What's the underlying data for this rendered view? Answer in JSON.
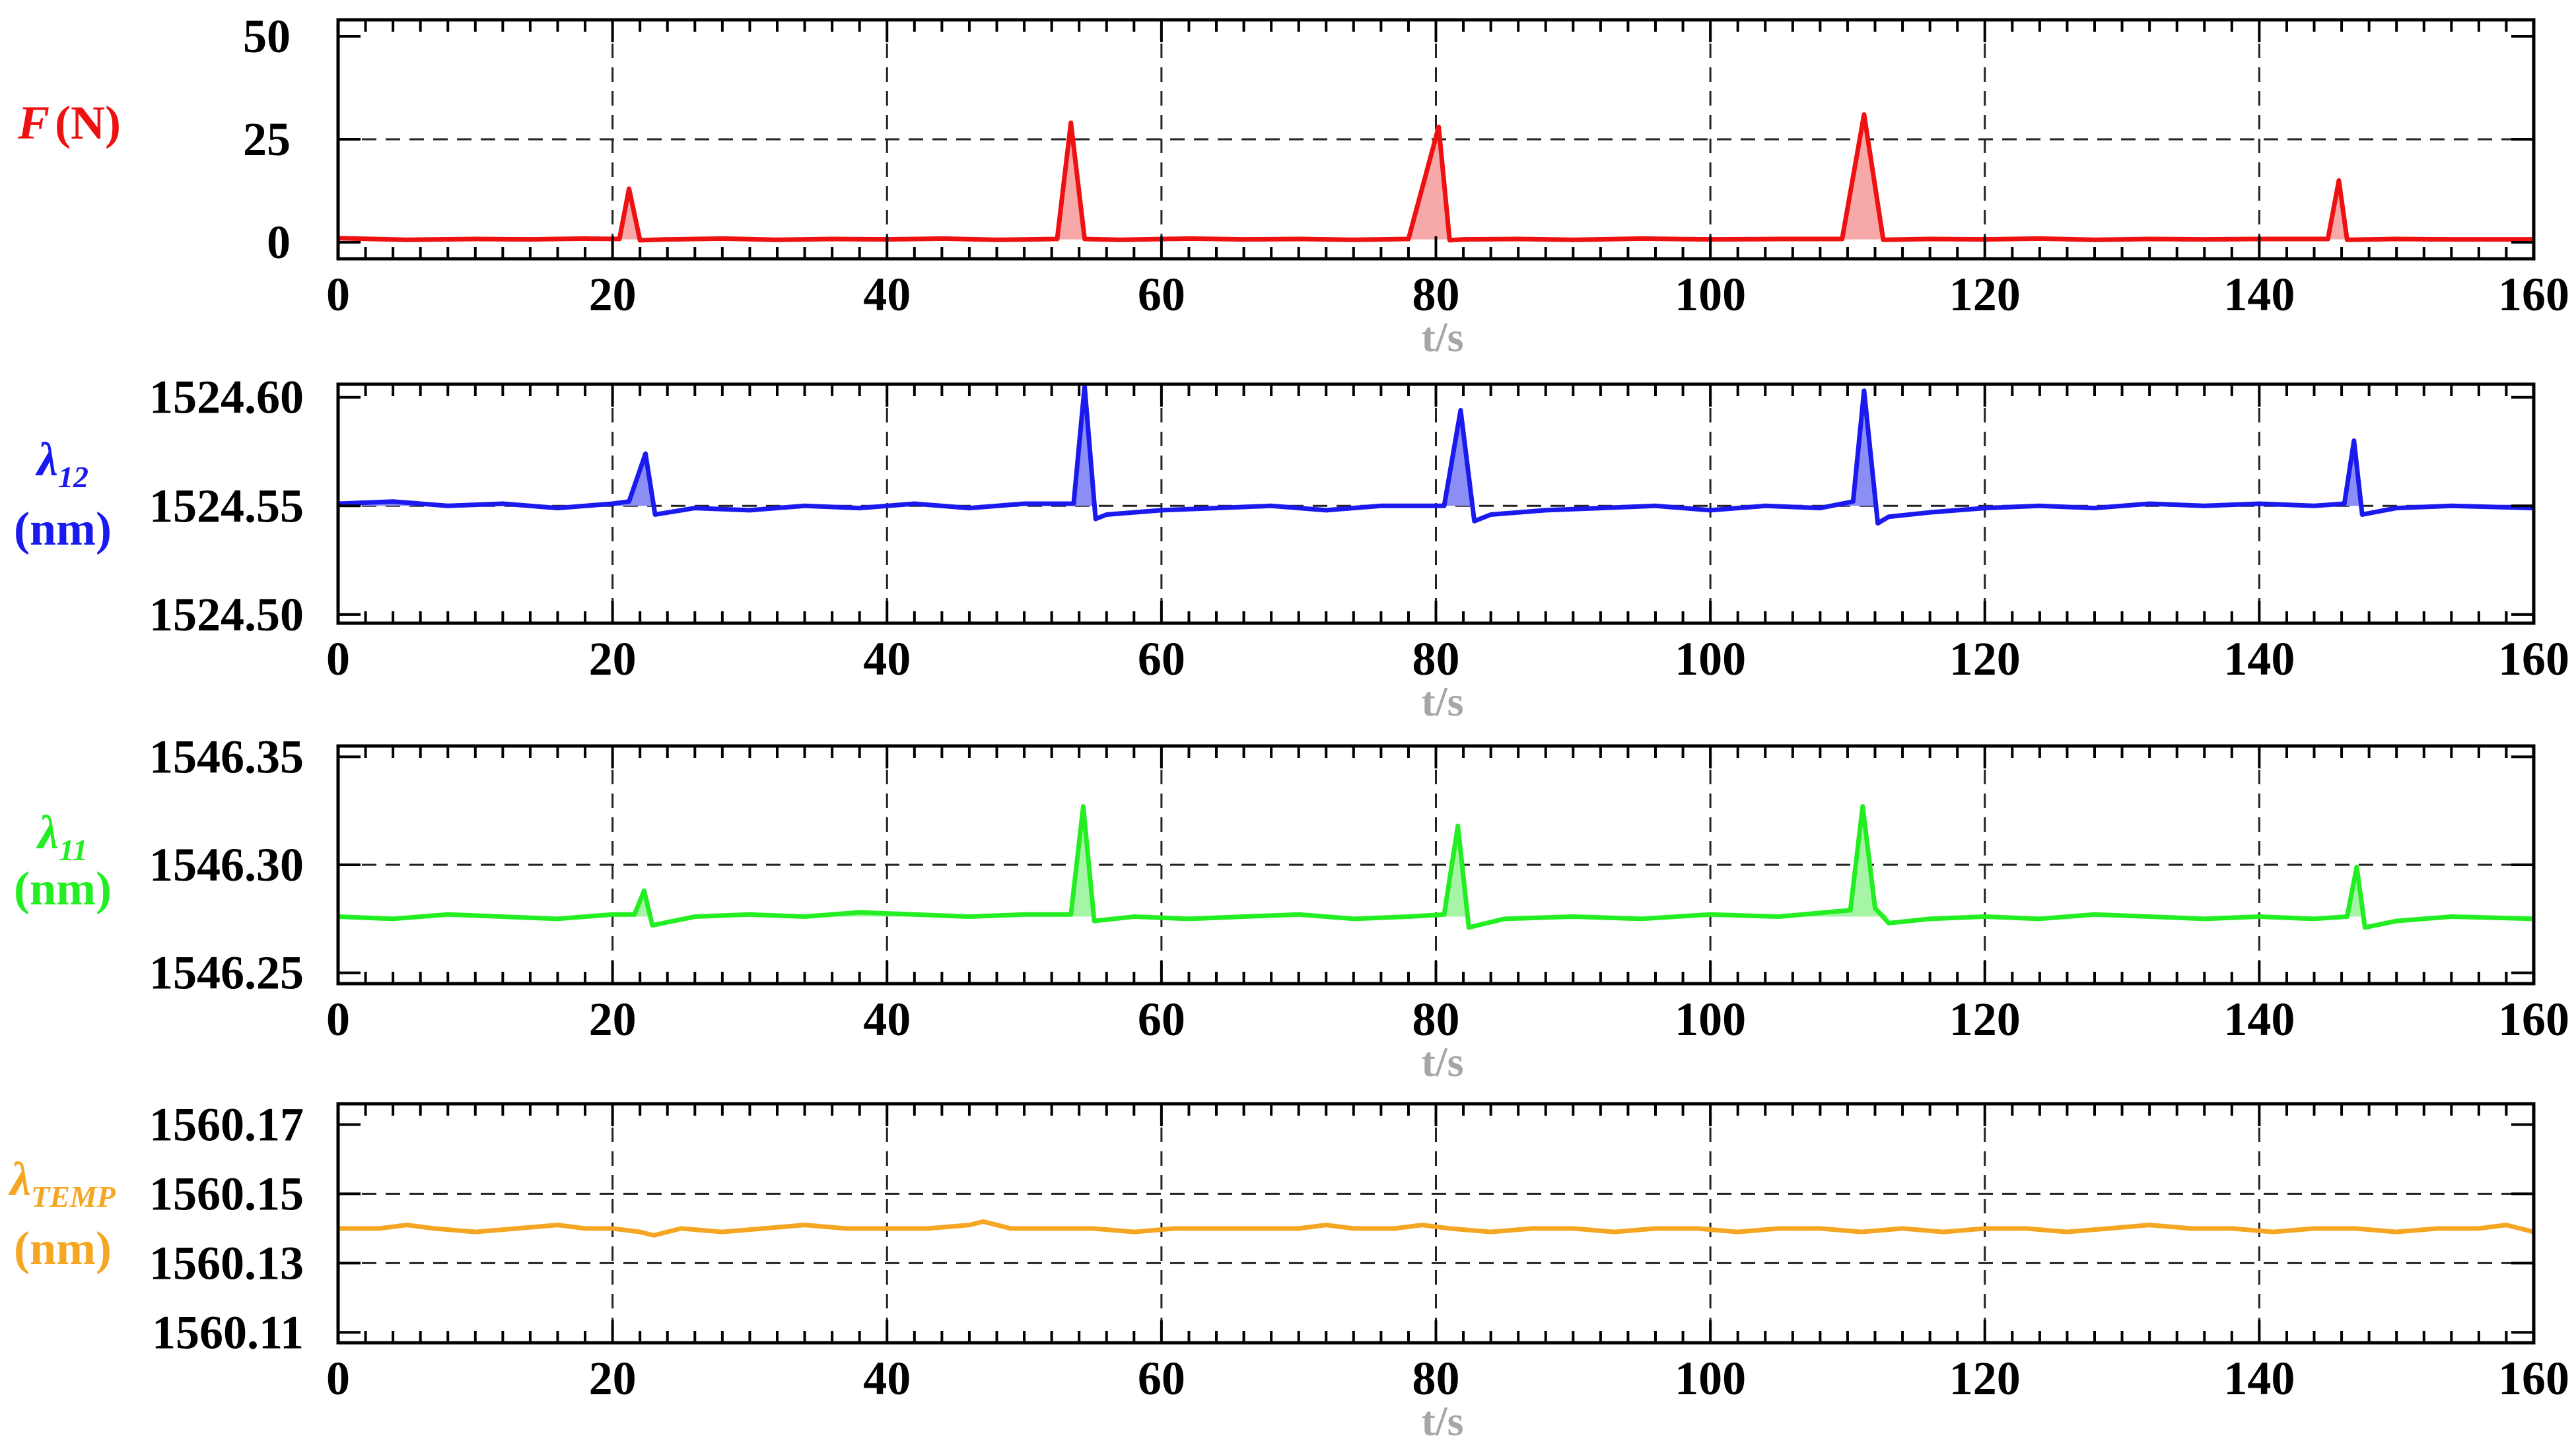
{
  "chart_data": [
    {
      "type": "area",
      "ylabel_symbol": "F",
      "ylabel_subscript": "",
      "ylabel_unit": "(N)",
      "xlabel": "t/s",
      "color": "#ee1111",
      "fill": "#f7a8a8",
      "xlim": [
        0,
        160
      ],
      "ylim": [
        -4,
        54
      ],
      "xticks": [
        "0",
        "20",
        "40",
        "60",
        "80",
        "100",
        "120",
        "140",
        "160"
      ],
      "yticks": [
        {
          "value": 0,
          "label": "0"
        },
        {
          "value": 25,
          "label": "25"
        },
        {
          "value": 50,
          "label": "50"
        }
      ],
      "hgrid": [
        25
      ],
      "series": [
        {
          "baseline": 0.7,
          "x": [
            0,
            5,
            10,
            14,
            18,
            20.5,
            21.2,
            22,
            24,
            28,
            32,
            36,
            40,
            44,
            48,
            52.4,
            53.4,
            54.4,
            57,
            62,
            66,
            70,
            74,
            78,
            80.2,
            81,
            82,
            86,
            90,
            95,
            100,
            105,
            109.6,
            111.2,
            112.6,
            116,
            120,
            124,
            128,
            132,
            136,
            140,
            145,
            145.8,
            146.4,
            150,
            154,
            160
          ],
          "y": [
            1,
            0.6,
            0.8,
            0.7,
            0.9,
            0.8,
            13,
            0.5,
            0.7,
            0.9,
            0.6,
            0.8,
            0.7,
            0.9,
            0.6,
            0.8,
            29,
            0.8,
            0.6,
            0.9,
            0.7,
            0.8,
            0.6,
            0.8,
            28,
            0.5,
            0.7,
            0.8,
            0.6,
            0.9,
            0.7,
            0.8,
            0.8,
            31,
            0.6,
            0.8,
            0.7,
            0.9,
            0.6,
            0.8,
            0.7,
            0.8,
            0.8,
            15,
            0.6,
            0.8,
            0.7,
            0.7
          ]
        }
      ]
    },
    {
      "type": "area",
      "ylabel_symbol": "λ",
      "ylabel_subscript": "12",
      "ylabel_unit": "(nm)",
      "xlabel": "t/s",
      "color": "#1a1aee",
      "fill": "#8a8ef5",
      "xlim": [
        0,
        160
      ],
      "ylim": [
        1524.496,
        1524.606
      ],
      "xticks": [
        "0",
        "20",
        "40",
        "60",
        "80",
        "100",
        "120",
        "140",
        "160"
      ],
      "yticks": [
        {
          "value": 1524.5,
          "label": "1524.50"
        },
        {
          "value": 1524.55,
          "label": "1524.55"
        },
        {
          "value": 1524.6,
          "label": "1524.60"
        }
      ],
      "hgrid": [
        1524.55
      ],
      "series": [
        {
          "baseline": 1524.55,
          "x": [
            0,
            4,
            8,
            12,
            16,
            20,
            21.2,
            22.4,
            23.1,
            26,
            30,
            34,
            38,
            42,
            46,
            50,
            53.6,
            54.4,
            55.2,
            56,
            60,
            64,
            68,
            72,
            76,
            80.6,
            81.8,
            82.8,
            84,
            88,
            92,
            96,
            100,
            104,
            108,
            110.4,
            111.2,
            112.2,
            113,
            116,
            120,
            124,
            128,
            132,
            136,
            140,
            144,
            146.2,
            146.9,
            147.5,
            150,
            154,
            160
          ],
          "y": [
            1524.551,
            1524.552,
            1524.55,
            1524.551,
            1524.549,
            1524.551,
            1524.552,
            1524.574,
            1524.546,
            1524.549,
            1524.548,
            1524.55,
            1524.549,
            1524.551,
            1524.549,
            1524.551,
            1524.551,
            1524.605,
            1524.544,
            1524.546,
            1524.548,
            1524.549,
            1524.55,
            1524.548,
            1524.55,
            1524.55,
            1524.594,
            1524.543,
            1524.546,
            1524.548,
            1524.549,
            1524.55,
            1524.548,
            1524.55,
            1524.549,
            1524.552,
            1524.603,
            1524.542,
            1524.545,
            1524.547,
            1524.549,
            1524.55,
            1524.549,
            1524.551,
            1524.55,
            1524.551,
            1524.55,
            1524.551,
            1524.58,
            1524.546,
            1524.549,
            1524.55,
            1524.549
          ]
        }
      ]
    },
    {
      "type": "area",
      "ylabel_symbol": "λ",
      "ylabel_subscript": "11",
      "ylabel_unit": "(nm)",
      "xlabel": "t/s",
      "color": "#22ee22",
      "fill": "#a6f5a6",
      "xlim": [
        0,
        160
      ],
      "ylim": [
        1546.245,
        1546.355
      ],
      "xticks": [
        "0",
        "20",
        "40",
        "60",
        "80",
        "100",
        "120",
        "140",
        "160"
      ],
      "yticks": [
        {
          "value": 1546.25,
          "label": "1546.25"
        },
        {
          "value": 1546.3,
          "label": "1546.30"
        },
        {
          "value": 1546.35,
          "label": "1546.35"
        }
      ],
      "hgrid": [
        1546.3
      ],
      "series": [
        {
          "baseline": 1546.276,
          "x": [
            0,
            4,
            8,
            12,
            16,
            20,
            21.6,
            22.3,
            22.9,
            26,
            30,
            34,
            38,
            42,
            46,
            50,
            53.4,
            54.3,
            55.1,
            58,
            62,
            66,
            70,
            74,
            78,
            80.6,
            81.6,
            82.4,
            85,
            90,
            95,
            100,
            105,
            110.2,
            111.1,
            112,
            113,
            116,
            120,
            124,
            128,
            132,
            136,
            140,
            144,
            146.4,
            147.1,
            147.7,
            150,
            154,
            160
          ],
          "y": [
            1546.276,
            1546.275,
            1546.277,
            1546.276,
            1546.275,
            1546.277,
            1546.277,
            1546.288,
            1546.272,
            1546.276,
            1546.277,
            1546.276,
            1546.278,
            1546.277,
            1546.276,
            1546.277,
            1546.277,
            1546.327,
            1546.274,
            1546.276,
            1546.275,
            1546.276,
            1546.277,
            1546.275,
            1546.276,
            1546.277,
            1546.318,
            1546.271,
            1546.275,
            1546.276,
            1546.275,
            1546.277,
            1546.276,
            1546.279,
            1546.327,
            1546.28,
            1546.273,
            1546.275,
            1546.276,
            1546.275,
            1546.277,
            1546.276,
            1546.275,
            1546.276,
            1546.275,
            1546.276,
            1546.299,
            1546.271,
            1546.274,
            1546.276,
            1546.275
          ]
        }
      ]
    },
    {
      "type": "line",
      "ylabel_symbol": "λ",
      "ylabel_subscript": "TEMP",
      "ylabel_unit": "(nm)",
      "xlabel": "t/s",
      "color": "#f5a623",
      "fill": "",
      "xlim": [
        0,
        160
      ],
      "ylim": [
        1560.107,
        1560.176
      ],
      "xticks": [
        "0",
        "20",
        "40",
        "60",
        "80",
        "100",
        "120",
        "140",
        "160"
      ],
      "yticks": [
        {
          "value": 1560.11,
          "label": "1560.11"
        },
        {
          "value": 1560.13,
          "label": "1560.13"
        },
        {
          "value": 1560.15,
          "label": "1560.15"
        },
        {
          "value": 1560.17,
          "label": "1560.17"
        }
      ],
      "hgrid": [
        1560.13,
        1560.15
      ],
      "series": [
        {
          "baseline": 1560.14,
          "x": [
            0,
            3,
            5,
            7,
            10,
            13,
            16,
            18,
            20,
            22,
            23,
            25,
            28,
            31,
            34,
            37,
            40,
            43,
            46,
            47,
            49,
            52,
            55,
            58,
            61,
            64,
            67,
            70,
            72,
            74,
            77,
            79,
            81,
            84,
            87,
            90,
            93,
            96,
            99,
            102,
            105,
            108,
            111,
            114,
            117,
            120,
            123,
            126,
            129,
            132,
            135,
            138,
            141,
            144,
            147,
            150,
            153,
            156,
            158,
            160
          ],
          "y": [
            1560.14,
            1560.14,
            1560.141,
            1560.14,
            1560.139,
            1560.14,
            1560.141,
            1560.14,
            1560.14,
            1560.139,
            1560.138,
            1560.14,
            1560.139,
            1560.14,
            1560.141,
            1560.14,
            1560.14,
            1560.14,
            1560.141,
            1560.142,
            1560.14,
            1560.14,
            1560.14,
            1560.139,
            1560.14,
            1560.14,
            1560.14,
            1560.14,
            1560.141,
            1560.14,
            1560.14,
            1560.141,
            1560.14,
            1560.139,
            1560.14,
            1560.14,
            1560.139,
            1560.14,
            1560.14,
            1560.139,
            1560.14,
            1560.14,
            1560.139,
            1560.14,
            1560.139,
            1560.14,
            1560.14,
            1560.139,
            1560.14,
            1560.141,
            1560.14,
            1560.14,
            1560.139,
            1560.14,
            1560.14,
            1560.139,
            1560.14,
            1560.14,
            1560.141,
            1560.139
          ]
        }
      ]
    }
  ]
}
